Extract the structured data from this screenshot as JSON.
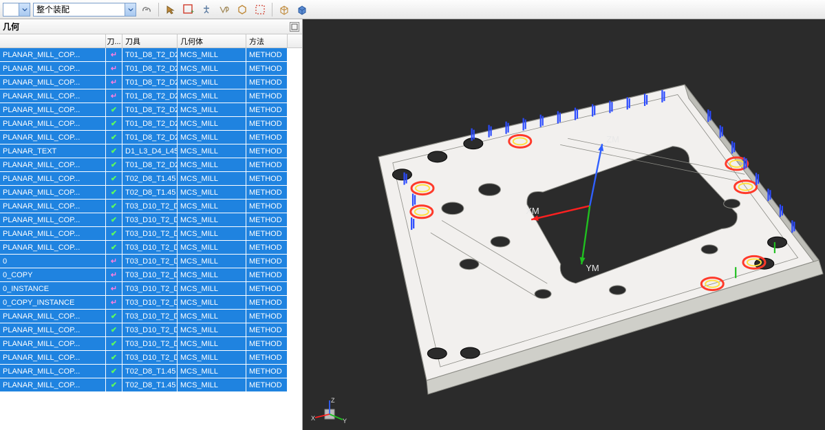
{
  "toolbar": {
    "assembly_dd": "整个装配",
    "icons": [
      "link",
      "redbox",
      "plus",
      "vp",
      "hex",
      "dashbox",
      "sep",
      "cube",
      "cube2"
    ]
  },
  "panel": {
    "title": "几何",
    "headers": {
      "name": "",
      "status": "刀...",
      "tool": "刀具",
      "geom": "几何体",
      "method": "方法"
    }
  },
  "col_widths": {
    "name": 154,
    "status": 24,
    "tool": 80,
    "geom": 100,
    "method": 60
  },
  "row_colors": {
    "bg": "#1f83e0",
    "fg": "#ffffff",
    "check": "#5dff5d",
    "arrow": "#ff7ee0"
  },
  "rows": [
    {
      "name": "PLANAR_MILL_COP...",
      "st": "a",
      "tool": "T01_D8_T2_D2...",
      "geom": "MCS_MILL",
      "meth": "METHOD"
    },
    {
      "name": "PLANAR_MILL_COP...",
      "st": "a",
      "tool": "T01_D8_T2_D2...",
      "geom": "MCS_MILL",
      "meth": "METHOD"
    },
    {
      "name": "PLANAR_MILL_COP...",
      "st": "a",
      "tool": "T01_D8_T2_D2...",
      "geom": "MCS_MILL",
      "meth": "METHOD"
    },
    {
      "name": "PLANAR_MILL_COP...",
      "st": "a",
      "tool": "T01_D8_T2_D2...",
      "geom": "MCS_MILL",
      "meth": "METHOD"
    },
    {
      "name": "PLANAR_MILL_COP...",
      "st": "c",
      "tool": "T01_D8_T2_D2...",
      "geom": "MCS_MILL",
      "meth": "METHOD"
    },
    {
      "name": "PLANAR_MILL_COP...",
      "st": "c",
      "tool": "T01_D8_T2_D2...",
      "geom": "MCS_MILL",
      "meth": "METHOD"
    },
    {
      "name": "PLANAR_MILL_COP...",
      "st": "c",
      "tool": "T01_D8_T2_D2...",
      "geom": "MCS_MILL",
      "meth": "METHOD"
    },
    {
      "name": "PLANAR_TEXT",
      "st": "c",
      "tool": "D1_L3_D4_L45...",
      "geom": "MCS_MILL",
      "meth": "METHOD"
    },
    {
      "name": "PLANAR_MILL_COP...",
      "st": "c",
      "tool": "T01_D8_T2_D2...",
      "geom": "MCS_MILL",
      "meth": "METHOD"
    },
    {
      "name": "PLANAR_MILL_COP...",
      "st": "c",
      "tool": "T02_D8_T1.45 ...",
      "geom": "MCS_MILL",
      "meth": "METHOD"
    },
    {
      "name": "PLANAR_MILL_COP...",
      "st": "c",
      "tool": "T02_D8_T1.45 ...",
      "geom": "MCS_MILL",
      "meth": "METHOD"
    },
    {
      "name": "PLANAR_MILL_COP...",
      "st": "c",
      "tool": "T03_D10_T2_D...",
      "geom": "MCS_MILL",
      "meth": "METHOD"
    },
    {
      "name": "PLANAR_MILL_COP...",
      "st": "c",
      "tool": "T03_D10_T2_D...",
      "geom": "MCS_MILL",
      "meth": "METHOD"
    },
    {
      "name": "PLANAR_MILL_COP...",
      "st": "c",
      "tool": "T03_D10_T2_D...",
      "geom": "MCS_MILL",
      "meth": "METHOD"
    },
    {
      "name": "PLANAR_MILL_COP...",
      "st": "c",
      "tool": "T03_D10_T2_D...",
      "geom": "MCS_MILL",
      "meth": "METHOD"
    },
    {
      "name": "0",
      "st": "a",
      "tool": "T03_D10_T2_D...",
      "geom": "MCS_MILL",
      "meth": "METHOD"
    },
    {
      "name": "0_COPY",
      "st": "a",
      "tool": "T03_D10_T2_D...",
      "geom": "MCS_MILL",
      "meth": "METHOD"
    },
    {
      "name": "0_INSTANCE",
      "st": "a",
      "tool": "T03_D10_T2_D...",
      "geom": "MCS_MILL",
      "meth": "METHOD"
    },
    {
      "name": "0_COPY_INSTANCE",
      "st": "a",
      "tool": "T03_D10_T2_D...",
      "geom": "MCS_MILL",
      "meth": "METHOD"
    },
    {
      "name": "PLANAR_MILL_COP...",
      "st": "c",
      "tool": "T03_D10_T2_D...",
      "geom": "MCS_MILL",
      "meth": "METHOD"
    },
    {
      "name": "PLANAR_MILL_COP...",
      "st": "c",
      "tool": "T03_D10_T2_D...",
      "geom": "MCS_MILL",
      "meth": "METHOD"
    },
    {
      "name": "PLANAR_MILL_COP...",
      "st": "c",
      "tool": "T03_D10_T2_D...",
      "geom": "MCS_MILL",
      "meth": "METHOD"
    },
    {
      "name": "PLANAR_MILL_COP...",
      "st": "c",
      "tool": "T03_D10_T2_D...",
      "geom": "MCS_MILL",
      "meth": "METHOD"
    },
    {
      "name": "PLANAR_MILL_COP...",
      "st": "c",
      "tool": "T02_D8_T1.45 ...",
      "geom": "MCS_MILL",
      "meth": "METHOD"
    },
    {
      "name": "PLANAR_MILL_COP...",
      "st": "c",
      "tool": "T02_D8_T1.45 ...",
      "geom": "MCS_MILL",
      "meth": "METHOD"
    }
  ],
  "viewport": {
    "bg": "#2b2b2b",
    "axes": {
      "x_label": "XM",
      "y_label": "YM",
      "z_label": "ZM",
      "x_color": "#ff2020",
      "y_color": "#20c020",
      "z_color": "#3060ff"
    },
    "mini_axes": {
      "x": "X",
      "y": "Y",
      "z": "Z"
    },
    "plate": {
      "body_fill": "#f2f0ee",
      "body_stroke": "#8a8a84",
      "pocket_fill": "#2b2b2b",
      "tab_fill": "#2b2b2b",
      "ring_outer": "#ff3a2a",
      "ring_inner": "#ffe040",
      "marker_blue": "#2b4bff",
      "marker_green": "#20c020"
    }
  }
}
